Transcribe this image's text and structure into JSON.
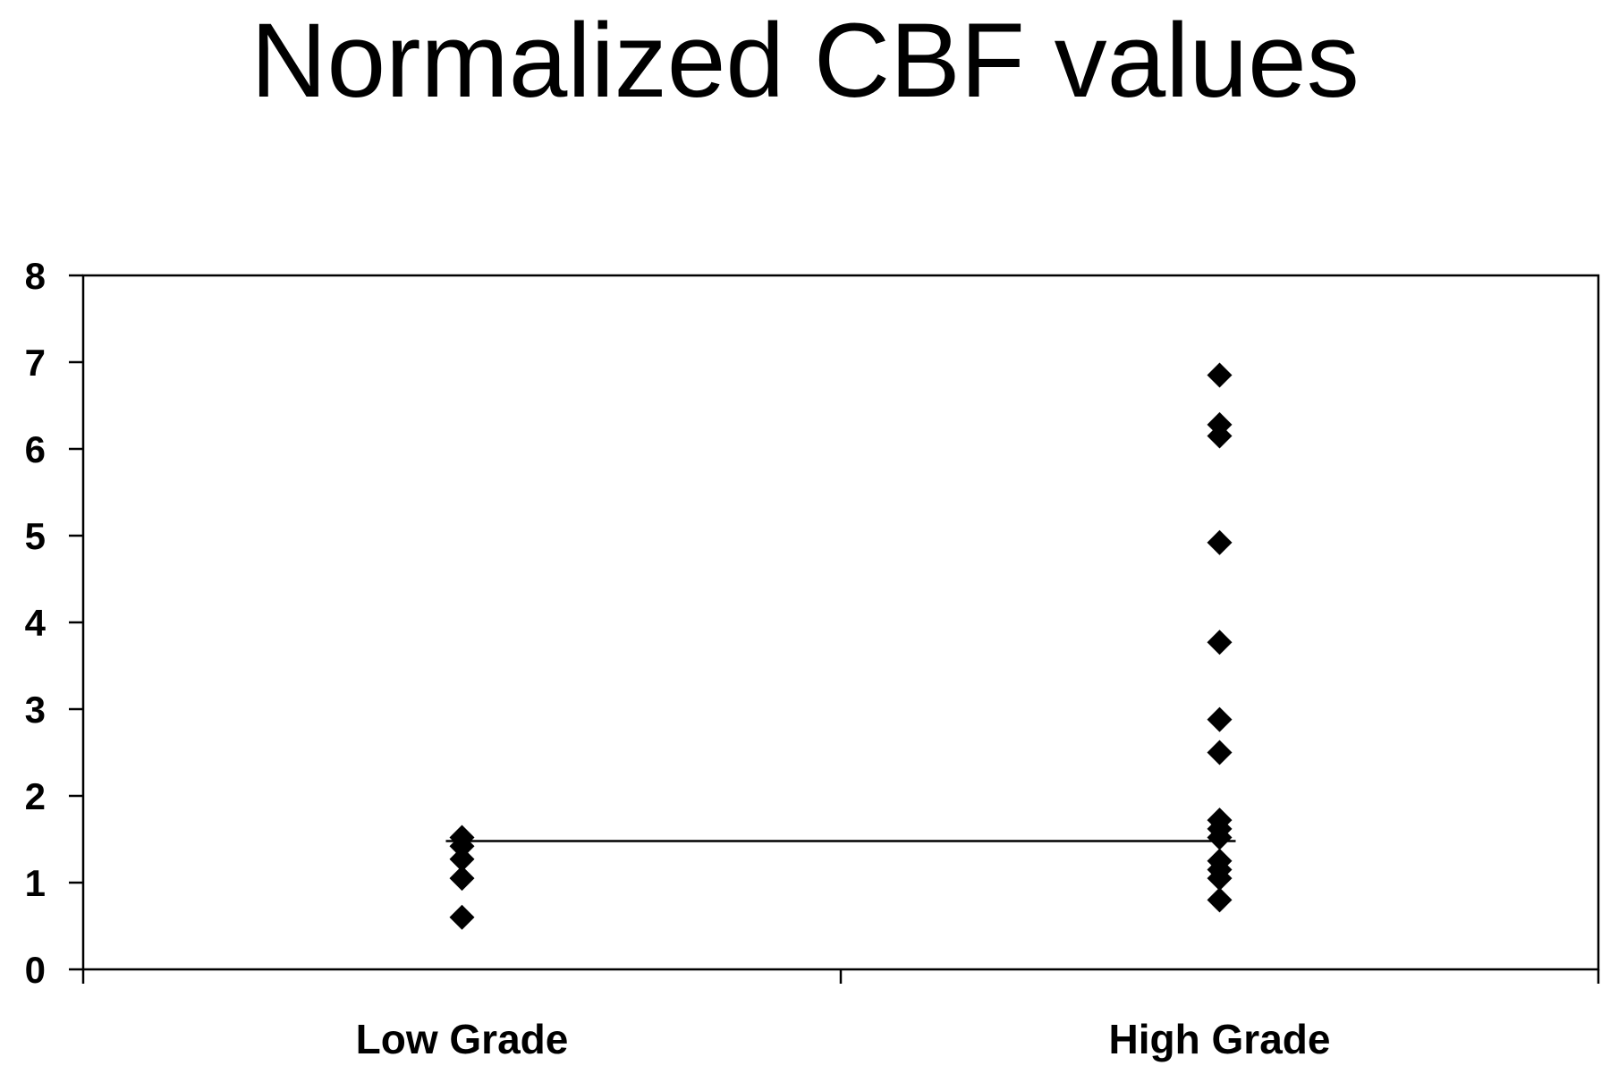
{
  "chart_data": {
    "type": "scatter",
    "title": "Normalized CBF values",
    "xlabel": "",
    "ylabel": "",
    "categories": [
      "Low Grade",
      "High Grade"
    ],
    "ylim": [
      0,
      8
    ],
    "yticks": [
      0,
      1,
      2,
      3,
      4,
      5,
      6,
      7,
      8
    ],
    "grid": false,
    "legend": "none",
    "series": [
      {
        "category": "Low Grade",
        "values": [
          1.52,
          1.42,
          1.27,
          1.05,
          0.6
        ]
      },
      {
        "category": "High Grade",
        "values": [
          6.85,
          6.28,
          6.15,
          4.92,
          3.77,
          2.88,
          2.5,
          1.72,
          1.62,
          1.52,
          1.25,
          1.15,
          1.05,
          0.8
        ]
      }
    ],
    "threshold_line": {
      "value": 1.48,
      "from": "Low Grade",
      "to": "High Grade"
    },
    "colors": {
      "marker": "#000000",
      "line": "#000000",
      "axis": "#000000"
    }
  }
}
